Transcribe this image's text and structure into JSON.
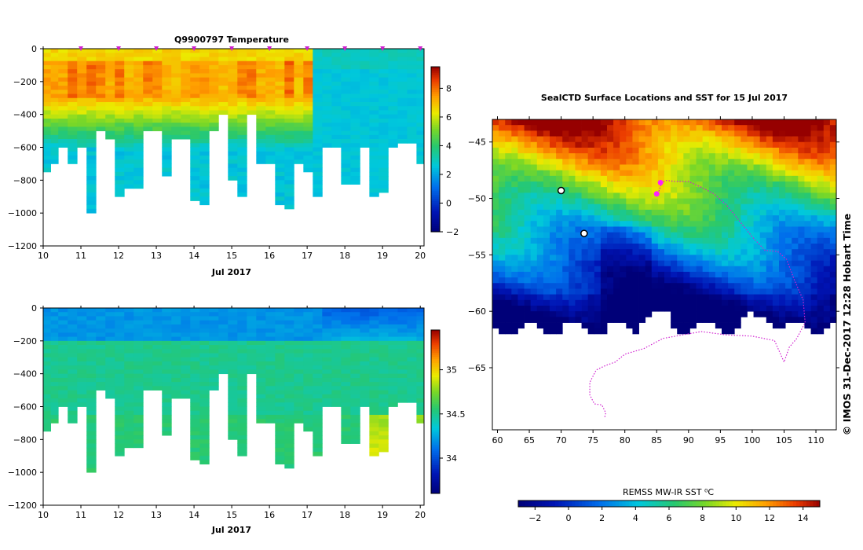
{
  "page": {
    "credit": "© IMOS 31-Dec-2017 12:28 Hobart Time"
  },
  "chart_data": [
    {
      "id": "temperature",
      "type": "heatmap",
      "title": "Q9900797  Temperature",
      "xlabel": "Jul 2017",
      "ylabel": "",
      "xlim": [
        10,
        20.1
      ],
      "ylim": [
        -1200,
        0
      ],
      "xticks": [
        10,
        11,
        12,
        13,
        14,
        15,
        16,
        17,
        18,
        19,
        20
      ],
      "yticks": [
        0,
        -200,
        -400,
        -600,
        -800,
        -1000,
        -1200
      ],
      "profile_times": [
        10.1,
        10.3,
        10.5,
        10.8,
        11.0,
        11.3,
        11.5,
        11.8,
        12.0,
        12.3,
        12.5,
        12.8,
        13.0,
        13.3,
        13.5,
        13.8,
        14.0,
        14.3,
        14.5,
        14.8,
        15.0,
        15.3,
        15.5,
        15.8,
        16.0,
        16.3,
        16.5,
        16.8,
        17.0,
        17.3,
        17.5,
        17.8,
        18.0,
        18.3,
        18.5,
        18.8,
        19.0,
        19.3,
        19.5,
        19.8,
        20.0
      ],
      "profile_max_depth": [
        -750,
        -700,
        -600,
        -700,
        -600,
        -990,
        -500,
        -530,
        -880,
        -850,
        -850,
        -500,
        -500,
        -770,
        -530,
        -530,
        -910,
        -930,
        -500,
        -400,
        -790,
        -880,
        -400,
        -700,
        -700,
        -940,
        -960,
        -700,
        -730,
        -880,
        -600,
        -600,
        -810,
        -810,
        -600,
        -890,
        -870,
        -600,
        -560,
        -560,
        -700
      ],
      "surface_marker_times": [
        11,
        12,
        13,
        14,
        15,
        16,
        17,
        18,
        19,
        20
      ],
      "colorbar": {
        "min": -2,
        "max": 9.5,
        "ticks": [
          8,
          6,
          4,
          2,
          0,
          -2
        ]
      }
    },
    {
      "id": "salinity",
      "type": "heatmap",
      "title": "",
      "xlabel": "Jul 2017",
      "ylabel": "",
      "xlim": [
        10,
        20.1
      ],
      "ylim": [
        -1200,
        0
      ],
      "xticks": [
        10,
        11,
        12,
        13,
        14,
        15,
        16,
        17,
        18,
        19,
        20
      ],
      "yticks": [
        0,
        -200,
        -400,
        -600,
        -800,
        -1000,
        -1200
      ],
      "colorbar": {
        "min": 33.6,
        "max": 35.45,
        "ticks": [
          35,
          34.5,
          34
        ]
      }
    },
    {
      "id": "sst-map",
      "type": "heatmap",
      "title": "SealCTD Surface Locations and SST for 15 Jul 2017",
      "xlabel": "",
      "ylabel": "",
      "xlim": [
        59.2,
        113.2
      ],
      "ylim": [
        -70.5,
        -43
      ],
      "xticks": [
        60,
        65,
        70,
        75,
        80,
        85,
        90,
        95,
        100,
        105,
        110
      ],
      "yticks": [
        -45,
        -50,
        -55,
        -60,
        -65
      ],
      "track_points": [
        [
          85.2,
          -49.6
        ],
        [
          85.8,
          -48.6
        ],
        [
          86.5,
          -48.4
        ],
        [
          88,
          -48.5
        ],
        [
          90,
          -48.5
        ],
        [
          92,
          -49.0
        ],
        [
          94,
          -49.6
        ],
        [
          96,
          -50.6
        ],
        [
          98,
          -52.0
        ],
        [
          100,
          -53.4
        ],
        [
          102,
          -54.6
        ],
        [
          104,
          -54.7
        ],
        [
          105.4,
          -55.4
        ],
        [
          106.6,
          -57.2
        ],
        [
          108,
          -59.0
        ],
        [
          108.3,
          -61.0
        ],
        [
          107.0,
          -62.4
        ],
        [
          105.8,
          -63.2
        ],
        [
          105.0,
          -64.5
        ],
        [
          103.5,
          -62.6
        ],
        [
          100,
          -62.2
        ],
        [
          96,
          -62.1
        ],
        [
          92,
          -61.8
        ],
        [
          89,
          -62.1
        ],
        [
          86,
          -62.4
        ],
        [
          83,
          -63.3
        ],
        [
          80,
          -63.8
        ],
        [
          78.5,
          -64.5
        ],
        [
          77,
          -64.8
        ],
        [
          75.5,
          -65.2
        ],
        [
          74.5,
          -66.3
        ],
        [
          74.5,
          -67.4
        ],
        [
          75.2,
          -68.2
        ],
        [
          76.4,
          -68.3
        ],
        [
          77,
          -69.0
        ],
        [
          76.8,
          -69.5
        ]
      ],
      "seal_positions": [
        [
          70.0,
          -49.3
        ],
        [
          73.6,
          -53.1
        ]
      ],
      "recent_positions": [
        [
          85.0,
          -49.6
        ],
        [
          85.6,
          -48.6
        ]
      ],
      "colorbar": {
        "label": "REMSS MW-IR SST ⁰C",
        "min": -3,
        "max": 15,
        "ticks": [
          -2,
          0,
          2,
          4,
          6,
          8,
          10,
          12,
          14
        ]
      }
    }
  ]
}
